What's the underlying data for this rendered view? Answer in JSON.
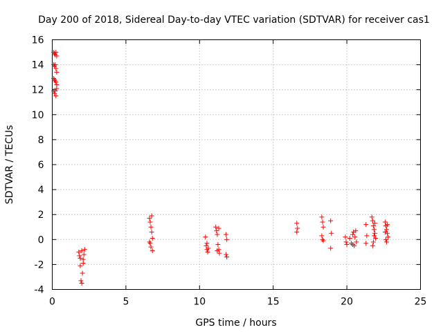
{
  "chart_data": {
    "type": "scatter",
    "title": "Day 200 of 2018, Sidereal Day-to-day VTEC variation (SDTVAR) for receiver cas1",
    "xlabel": "GPS time / hours",
    "ylabel": "SDTVAR / TECUs",
    "xlim": [
      0,
      25
    ],
    "ylim": [
      -4,
      16
    ],
    "xticks": [
      0,
      5,
      10,
      15,
      20,
      25
    ],
    "yticks": [
      -4,
      -2,
      0,
      2,
      4,
      6,
      8,
      10,
      12,
      14,
      16
    ],
    "xtick_labels": [
      "0",
      "5",
      "10",
      "15",
      "20",
      "25"
    ],
    "ytick_labels": [
      "-4",
      "-2",
      "0",
      "2",
      "4",
      "6",
      "8",
      "10",
      "12",
      "14",
      "16"
    ],
    "grid": true,
    "marker": "+",
    "marker_color": "#ff0000",
    "series": [
      {
        "name": "SDTVAR",
        "points": [
          [
            0.1,
            15.0
          ],
          [
            0.15,
            14.9
          ],
          [
            0.2,
            14.8
          ],
          [
            0.25,
            15.0
          ],
          [
            0.3,
            14.7
          ],
          [
            0.1,
            14.0
          ],
          [
            0.15,
            13.9
          ],
          [
            0.2,
            14.0
          ],
          [
            0.25,
            13.7
          ],
          [
            0.3,
            13.4
          ],
          [
            0.1,
            12.9
          ],
          [
            0.15,
            12.8
          ],
          [
            0.2,
            12.7
          ],
          [
            0.25,
            12.6
          ],
          [
            0.3,
            12.4
          ],
          [
            0.1,
            11.9
          ],
          [
            0.15,
            11.7
          ],
          [
            0.2,
            11.9
          ],
          [
            0.25,
            11.5
          ],
          [
            0.3,
            12.1
          ],
          [
            1.8,
            -1.0
          ],
          [
            1.85,
            -1.3
          ],
          [
            1.9,
            -1.5
          ],
          [
            1.95,
            -3.3
          ],
          [
            2.0,
            -3.5
          ],
          [
            2.05,
            -2.7
          ],
          [
            2.1,
            -1.9
          ],
          [
            2.15,
            -1.2
          ],
          [
            2.2,
            -0.8
          ],
          [
            1.9,
            -2.1
          ],
          [
            2.0,
            -0.9
          ],
          [
            2.1,
            -1.6
          ],
          [
            6.6,
            1.7
          ],
          [
            6.65,
            1.4
          ],
          [
            6.7,
            1.0
          ],
          [
            6.75,
            0.6
          ],
          [
            6.8,
            0.1
          ],
          [
            6.65,
            -0.3
          ],
          [
            6.7,
            -0.6
          ],
          [
            6.8,
            -0.9
          ],
          [
            6.75,
            1.9
          ],
          [
            6.6,
            -0.2
          ],
          [
            10.4,
            0.2
          ],
          [
            10.45,
            -0.5
          ],
          [
            10.5,
            -0.8
          ],
          [
            10.55,
            -1.0
          ],
          [
            10.6,
            -0.7
          ],
          [
            10.5,
            -0.3
          ],
          [
            11.1,
            1.0
          ],
          [
            11.15,
            0.7
          ],
          [
            11.2,
            0.4
          ],
          [
            11.25,
            -0.4
          ],
          [
            11.3,
            -0.8
          ],
          [
            11.35,
            -1.1
          ],
          [
            11.2,
            -0.9
          ],
          [
            11.3,
            0.9
          ],
          [
            11.8,
            0.4
          ],
          [
            11.85,
            0.0
          ],
          [
            11.8,
            -1.2
          ],
          [
            11.85,
            -1.4
          ],
          [
            16.6,
            1.3
          ],
          [
            16.65,
            0.9
          ],
          [
            16.6,
            0.6
          ],
          [
            18.3,
            1.8
          ],
          [
            18.35,
            1.4
          ],
          [
            18.4,
            1.0
          ],
          [
            18.3,
            0.3
          ],
          [
            18.35,
            0.0
          ],
          [
            18.4,
            -0.1
          ],
          [
            18.9,
            1.5
          ],
          [
            18.95,
            0.5
          ],
          [
            18.9,
            -0.7
          ],
          [
            19.9,
            0.2
          ],
          [
            19.95,
            -0.2
          ],
          [
            20.0,
            -0.4
          ],
          [
            20.2,
            0.1
          ],
          [
            20.3,
            -0.3
          ],
          [
            20.4,
            0.4
          ],
          [
            20.45,
            0.6
          ],
          [
            20.5,
            -0.5
          ],
          [
            20.55,
            0.2
          ],
          [
            20.6,
            0.7
          ],
          [
            20.65,
            -0.2
          ],
          [
            20.4,
            -0.4
          ],
          [
            21.3,
            1.2
          ],
          [
            21.35,
            0.3
          ],
          [
            21.3,
            -0.3
          ],
          [
            21.7,
            1.8
          ],
          [
            21.75,
            1.5
          ],
          [
            21.8,
            1.1
          ],
          [
            21.85,
            0.8
          ],
          [
            21.9,
            0.5
          ],
          [
            21.95,
            0.1
          ],
          [
            21.8,
            -0.2
          ],
          [
            21.75,
            -0.5
          ],
          [
            21.9,
            1.3
          ],
          [
            21.85,
            0.3
          ],
          [
            22.6,
            1.4
          ],
          [
            22.65,
            1.1
          ],
          [
            22.7,
            0.8
          ],
          [
            22.75,
            0.5
          ],
          [
            22.8,
            0.2
          ],
          [
            22.65,
            0.0
          ],
          [
            22.7,
            -0.2
          ],
          [
            22.75,
            1.2
          ],
          [
            22.6,
            0.6
          ]
        ]
      }
    ]
  }
}
